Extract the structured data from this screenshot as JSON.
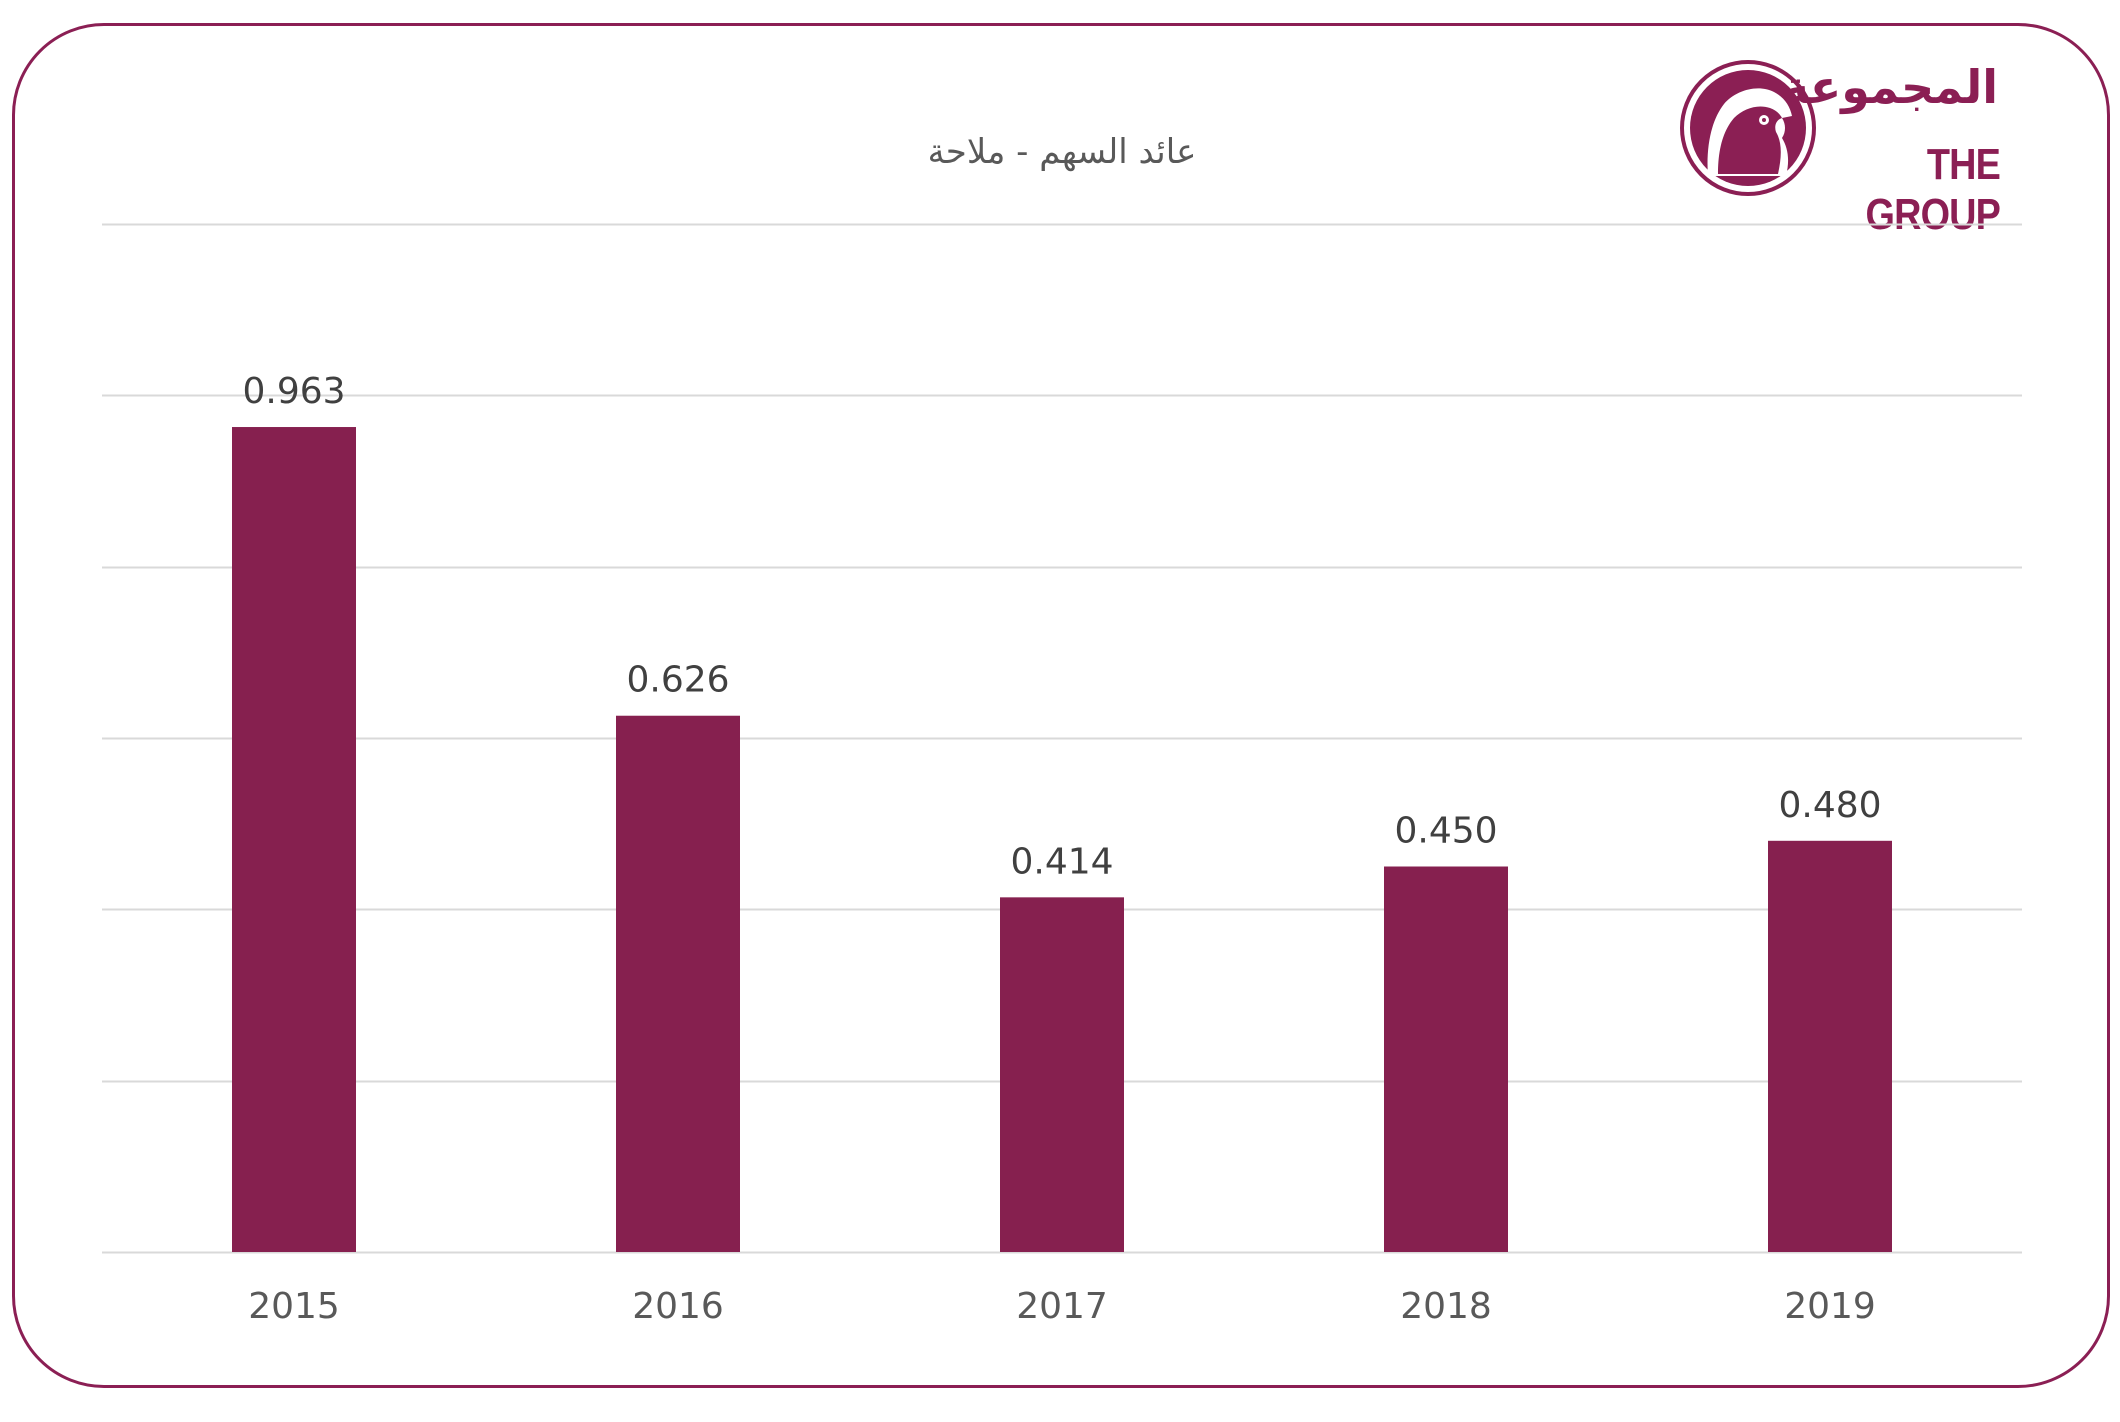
{
  "brand": {
    "name_ar": "المجموعة",
    "name_en": "THE GROUP",
    "color": "#8b1f54"
  },
  "chart_data": {
    "type": "bar",
    "title": "عائد السهم - ملاحة",
    "xlabel": "",
    "ylabel": "",
    "categories": [
      "2015",
      "2016",
      "2017",
      "2018",
      "2019"
    ],
    "values": [
      0.963,
      0.626,
      0.414,
      0.45,
      0.48
    ],
    "value_labels": [
      "0.963",
      "0.626",
      "0.414",
      "0.450",
      "0.480"
    ],
    "ylim": [
      0,
      1.2
    ],
    "gridline_step": 0.2,
    "show_y_tick_labels": false,
    "grid": true,
    "legend": "none",
    "bar_color": "#86204f",
    "grid_color": "#d9d9d9"
  }
}
